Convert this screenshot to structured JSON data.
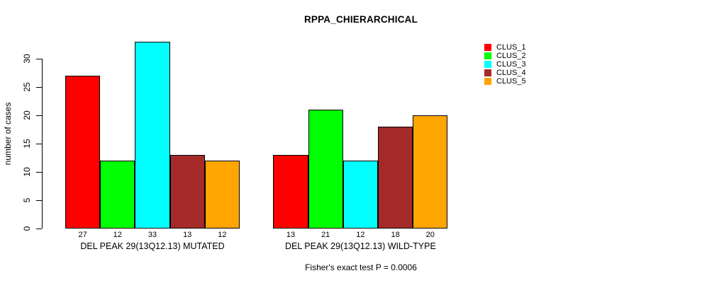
{
  "title": "RPPA_CHIERARCHICAL",
  "caption": "Fisher's exact test P = 0.0006",
  "y_axis": {
    "label": "number of cases"
  },
  "legend": {
    "entries": [
      {
        "label": "CLUS_1",
        "color": "#FF0000"
      },
      {
        "label": "CLUS_2",
        "color": "#00FF00"
      },
      {
        "label": "CLUS_3",
        "color": "#00FFFF"
      },
      {
        "label": "CLUS_4",
        "color": "#A52A2A"
      },
      {
        "label": "CLUS_5",
        "color": "#FFA500"
      }
    ]
  },
  "chart_data": {
    "type": "bar",
    "categories": [
      "DEL PEAK 29(13Q12.13) MUTATED",
      "DEL PEAK 29(13Q12.13) WILD-TYPE"
    ],
    "series": [
      {
        "name": "CLUS_1",
        "color": "#FF0000",
        "values": [
          27,
          13
        ]
      },
      {
        "name": "CLUS_2",
        "color": "#00FF00",
        "values": [
          12,
          21
        ]
      },
      {
        "name": "CLUS_3",
        "color": "#00FFFF",
        "values": [
          33,
          12
        ]
      },
      {
        "name": "CLUS_4",
        "color": "#A52A2A",
        "values": [
          13,
          18
        ]
      },
      {
        "name": "CLUS_5",
        "color": "#FFA500",
        "values": [
          12,
          20
        ]
      }
    ],
    "title": "RPPA_CHIERARCHICAL",
    "xlabel": "",
    "ylabel": "number of cases",
    "ylim": [
      0,
      33
    ],
    "yticks": [
      0,
      5,
      10,
      15,
      20,
      25,
      30
    ],
    "bar_value_labels": [
      [
        27,
        12,
        33,
        13,
        12
      ],
      [
        13,
        21,
        12,
        18,
        20
      ]
    ],
    "grid": false,
    "legend_position": "top-right",
    "annotation": "Fisher's exact test P = 0.0006"
  }
}
